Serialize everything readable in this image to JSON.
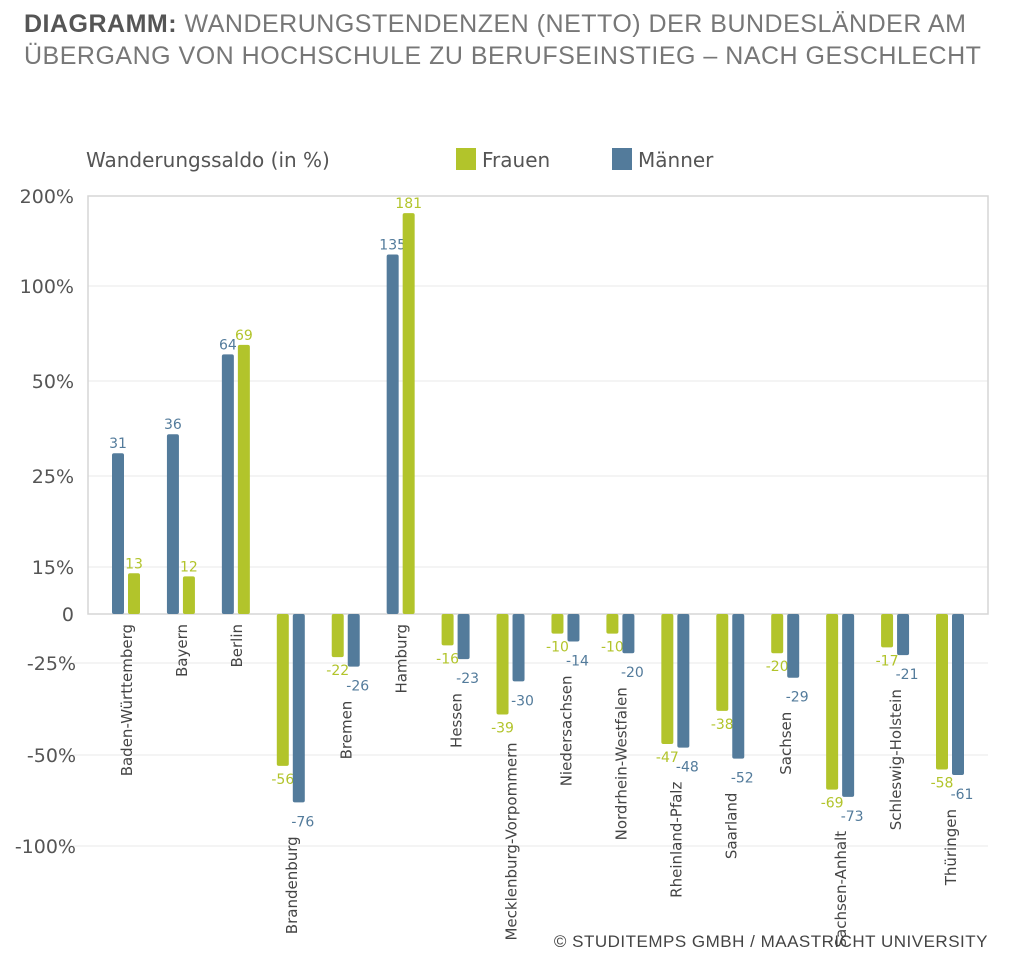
{
  "title_bold": "DIAGRAMM:",
  "title_rest": "WANDERUNGSTENDENZEN (NETTO) DER BUNDESLÄNDER AM",
  "title_line2": "ÜBERGANG VON HOCHSCHULE ZU BERUFSEINSTIEG – NACH GESCHLECHT",
  "credit": "© STUDITEMPS GMBH / MAASTRICHT UNIVERSITY",
  "chart_data": {
    "type": "bar",
    "ylabel": "Wanderungssaldo (in %)",
    "y_ticks": [
      200,
      100,
      50,
      25,
      15,
      0,
      -25,
      -50,
      -100
    ],
    "y_tick_labels": [
      "200%",
      "100%",
      "50%",
      "25%",
      "15%",
      "0",
      "-25%",
      "-50%",
      "-100%"
    ],
    "y_scale": "non-linear (piecewise by tick)",
    "grid": true,
    "legend_placement": "top",
    "categories": [
      "Baden-Württemberg",
      "Bayern",
      "Berlin",
      "Brandenburg",
      "Bremen",
      "Hamburg",
      "Hessen",
      "Mecklenburg-Vorpommern",
      "Niedersachsen",
      "Nordrhein-Westfalen",
      "Rheinland-Pfalz",
      "Saarland",
      "Sachsen",
      "Sachsen-Anhalt",
      "Schleswig-Holstein",
      "Thüringen"
    ],
    "series": [
      {
        "name": "Frauen",
        "color": "#b2c42b",
        "values": [
          13,
          12,
          69,
          -56,
          -22,
          181,
          -16,
          -39,
          -10,
          -10,
          -47,
          -38,
          -20,
          -69,
          -17,
          -58
        ]
      },
      {
        "name": "Männer",
        "color": "#537b9b",
        "values": [
          31,
          36,
          64,
          -76,
          -26,
          135,
          -23,
          -30,
          -14,
          -20,
          -48,
          -52,
          -29,
          -73,
          -21,
          -61
        ]
      }
    ]
  }
}
